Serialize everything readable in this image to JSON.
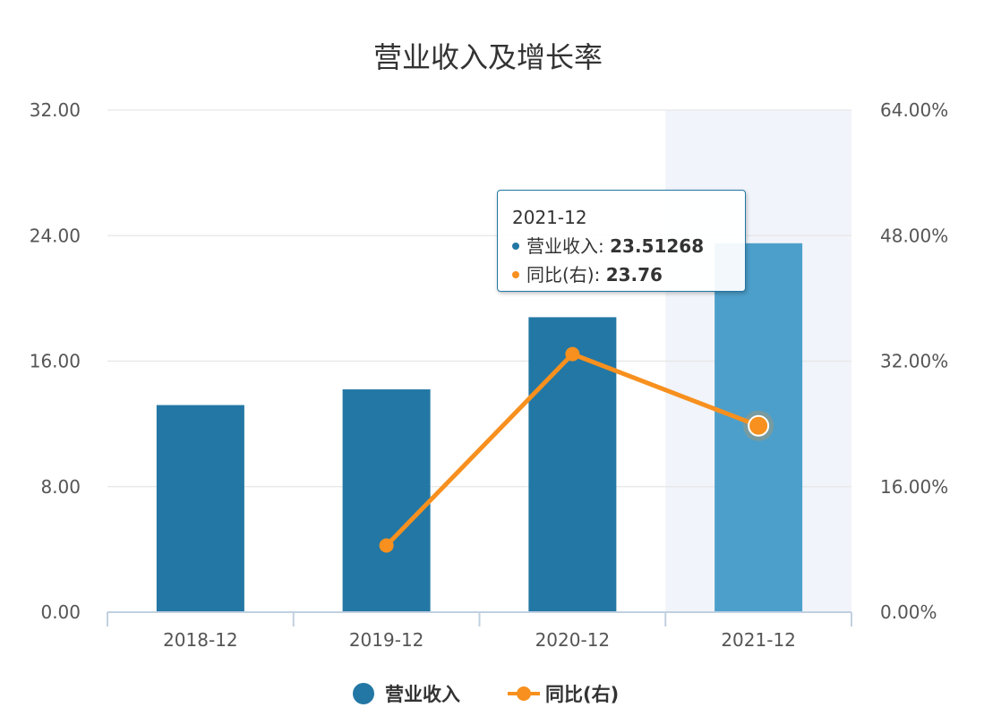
{
  "chart_data": {
    "type": "bar",
    "title": "营业收入及增长率",
    "categories": [
      "2018-12",
      "2019-12",
      "2020-12",
      "2021-12"
    ],
    "series": [
      {
        "name": "营业收入",
        "type": "bar",
        "axis": "left",
        "color": "#2377a4",
        "values": [
          13.2,
          14.2,
          18.8,
          23.51268
        ]
      },
      {
        "name": "同比(右)",
        "type": "line",
        "axis": "right",
        "color": "#f7901e",
        "values": [
          null,
          8.5,
          32.9,
          23.76
        ]
      }
    ],
    "y_left": {
      "ticks": [
        "0.00",
        "8.00",
        "16.00",
        "24.00",
        "32.00"
      ],
      "range": [
        0,
        32
      ]
    },
    "y_right": {
      "ticks": [
        "0.00%",
        "16.00%",
        "32.00%",
        "48.00%",
        "64.00%"
      ],
      "range": [
        0,
        64
      ]
    },
    "highlight_color": "#4d9fcb",
    "hovered_category": "2021-12",
    "legend_position": "bottom",
    "grid": true
  },
  "tooltip": {
    "header": "2021-12",
    "rows": [
      {
        "label": "营业收入: ",
        "value": "23.51268",
        "color": "#2377a4"
      },
      {
        "label": "同比(右): ",
        "value": "23.76",
        "color": "#f7901e"
      }
    ]
  }
}
